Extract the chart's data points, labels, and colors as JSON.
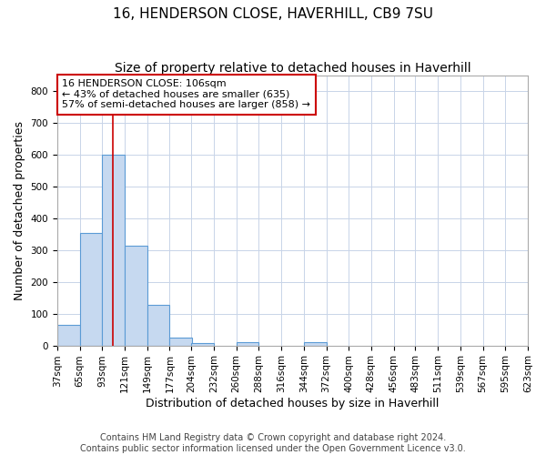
{
  "title": "16, HENDERSON CLOSE, HAVERHILL, CB9 7SU",
  "subtitle": "Size of property relative to detached houses in Haverhill",
  "xlabel": "Distribution of detached houses by size in Haverhill",
  "ylabel": "Number of detached properties",
  "bar_edges": [
    37,
    65,
    93,
    121,
    149,
    177,
    204,
    232,
    260,
    288,
    316,
    344,
    372,
    400,
    428,
    456,
    483,
    511,
    539,
    567,
    595
  ],
  "bar_values": [
    65,
    355,
    600,
    315,
    128,
    25,
    8,
    0,
    10,
    0,
    0,
    10,
    0,
    0,
    0,
    0,
    0,
    0,
    0,
    0
  ],
  "bar_color": "#c6d9f0",
  "bar_edge_color": "#5b9bd5",
  "red_line_x": 106,
  "annotation_text": "16 HENDERSON CLOSE: 106sqm\n← 43% of detached houses are smaller (635)\n57% of semi-detached houses are larger (858) →",
  "annotation_box_color": "#ffffff",
  "annotation_box_edge_color": "#cc0000",
  "ylim": [
    0,
    850
  ],
  "yticks": [
    0,
    100,
    200,
    300,
    400,
    500,
    600,
    700,
    800
  ],
  "footer_line1": "Contains HM Land Registry data © Crown copyright and database right 2024.",
  "footer_line2": "Contains public sector information licensed under the Open Government Licence v3.0.",
  "bg_color": "#ffffff",
  "grid_color": "#c8d4e8",
  "title_fontsize": 11,
  "subtitle_fontsize": 10,
  "axis_label_fontsize": 9,
  "tick_fontsize": 7.5,
  "annotation_fontsize": 8,
  "footer_fontsize": 7
}
